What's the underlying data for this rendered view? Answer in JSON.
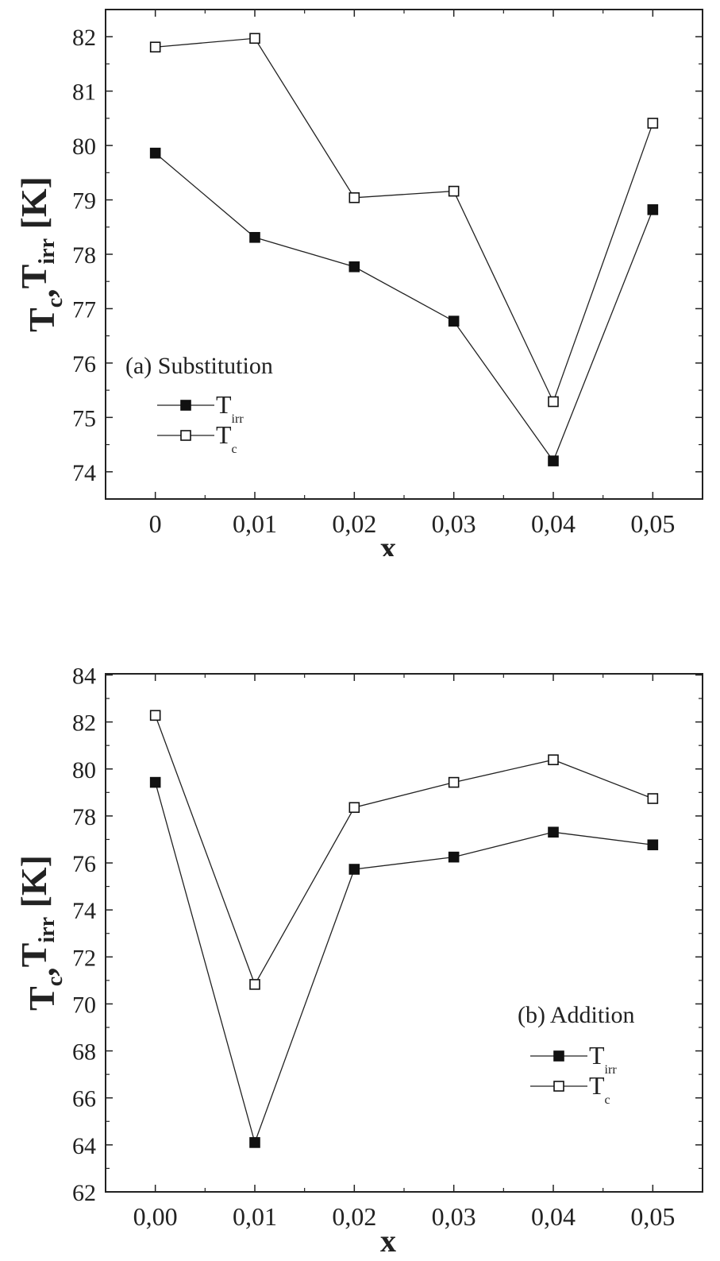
{
  "chart_data": [
    {
      "type": "line",
      "title": "",
      "annotation": "(a) Substitution",
      "xlabel": "x",
      "ylabel": {
        "main1": "T",
        "sub1": "c",
        "sep": ",",
        "main2": "T",
        "sub2": "irr",
        "unit": " [K]"
      },
      "x": [
        0,
        0.01,
        0.02,
        0.03,
        0.04,
        0.05
      ],
      "xtick_labels": [
        "0",
        "0,01",
        "0,02",
        "0,03",
        "0,04",
        "0,05"
      ],
      "yticks": [
        74,
        75,
        76,
        77,
        78,
        79,
        80,
        81,
        82
      ],
      "xlim": [
        -0.005,
        0.055
      ],
      "ylim": [
        73.5,
        82.5
      ],
      "legend_position": "lower-left",
      "series": [
        {
          "name": "T",
          "sub": "irr",
          "marker": "filled-square",
          "values": [
            79.86,
            78.31,
            77.77,
            76.77,
            74.2,
            78.82
          ]
        },
        {
          "name": "T",
          "sub": "c",
          "marker": "open-square",
          "values": [
            81.81,
            81.97,
            79.04,
            79.16,
            75.29,
            80.41
          ]
        }
      ]
    },
    {
      "type": "line",
      "title": "",
      "annotation": "(b) Addition",
      "xlabel": "x",
      "ylabel": {
        "main1": "T",
        "sub1": "c",
        "sep": ",",
        "main2": "T",
        "sub2": "irr",
        "unit": " [K]"
      },
      "x": [
        0,
        0.01,
        0.02,
        0.03,
        0.04,
        0.05
      ],
      "xtick_labels": [
        "0,00",
        "0,01",
        "0,02",
        "0,03",
        "0,04",
        "0,05"
      ],
      "yticks": [
        62,
        64,
        66,
        68,
        70,
        72,
        74,
        76,
        78,
        80,
        82,
        84
      ],
      "xlim": [
        -0.005,
        0.055
      ],
      "ylim": [
        62,
        84.05
      ],
      "legend_position": "lower-right",
      "series": [
        {
          "name": "T",
          "sub": "irr",
          "marker": "filled-square",
          "values": [
            79.43,
            64.1,
            75.73,
            76.25,
            77.31,
            76.77
          ]
        },
        {
          "name": "T",
          "sub": "c",
          "marker": "open-square",
          "values": [
            82.28,
            70.83,
            78.36,
            79.43,
            80.39,
            78.74
          ]
        }
      ]
    }
  ]
}
